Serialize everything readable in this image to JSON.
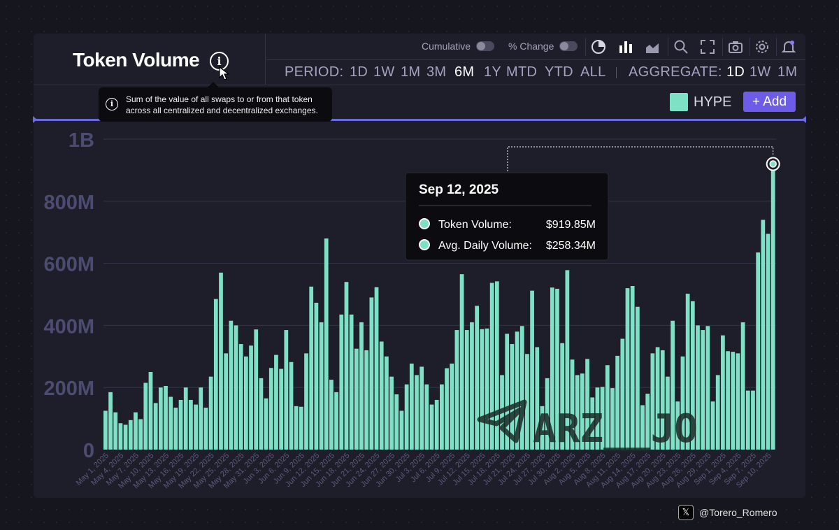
{
  "header": {
    "title": "Token Volume",
    "info_tooltip": "Sum of the value of all swaps to or from that token across all centralized and decentralized exchanges."
  },
  "toolbar": {
    "cumulative_label": "Cumulative",
    "pct_change_label": "% Change",
    "icons": [
      "pie-chart-icon",
      "bar-chart-icon",
      "area-chart-icon",
      "zoom-icon",
      "fullscreen-icon",
      "camera-icon",
      "settings-icon",
      "bell-icon"
    ]
  },
  "period": {
    "label": "PERIOD:",
    "options": [
      "1D",
      "1W",
      "1M",
      "3M",
      "6M",
      "1Y",
      "MTD",
      "YTD",
      "ALL"
    ],
    "selected": "6M"
  },
  "aggregate": {
    "label": "AGGREGATE:",
    "options": [
      "1D",
      "1W",
      "1M"
    ],
    "selected": "1D"
  },
  "legend": {
    "series_name": "HYPE",
    "color": "#7ee0c4"
  },
  "add_button": "+ Add",
  "hover_tooltip": {
    "date": "Sep 12, 2025",
    "rows": [
      {
        "label": "Token Volume:",
        "value": "$919.85M"
      },
      {
        "label": "Avg. Daily Volume:",
        "value": "$258.34M"
      }
    ]
  },
  "watermark": "ARZ__JO",
  "credit": "@Torero_Romero",
  "colors": {
    "bar": "#7ee0c4",
    "accent": "#6c5ce7",
    "background": "#1e1e2b",
    "axis_text": "#4c4c70"
  },
  "chart_data": {
    "type": "bar",
    "title": "Token Volume",
    "xlabel": "",
    "ylabel": "",
    "ylim": [
      0,
      1000000000
    ],
    "y_ticks": [
      "0",
      "200M",
      "400M",
      "600M",
      "800M",
      "1B"
    ],
    "x_tick_labels": [
      "May 1, 2025",
      "May 4, 2025",
      "May 7, 2025",
      "May 10, 2025",
      "May 13, 2025",
      "May 16, 2025",
      "May 19, 2025",
      "May 22, 2025",
      "May 25, 2025",
      "May 28, 2025",
      "May 31, 2025",
      "Jun 3, 2025",
      "Jun 6, 2025",
      "Jun 9, 2025",
      "Jun 12, 2025",
      "Jun 15, 2025",
      "Jun 18, 2025",
      "Jun 21, 2025",
      "Jun 24, 2025",
      "Jun 27, 2025",
      "Jun 30, 2025",
      "Jul 3, 2025",
      "Jul 6, 2025",
      "Jul 9, 2025",
      "Jul 12, 2025",
      "Jul 15, 2025",
      "Jul 18, 2025",
      "Jul 21, 2025",
      "Jul 24, 2025",
      "Jul 27, 2025",
      "Jul 30, 2025",
      "Aug 2, 2025",
      "Aug 5, 2025",
      "Aug 8, 2025",
      "Aug 11, 2025",
      "Aug 14, 2025",
      "Aug 17, 2025",
      "Aug 20, 2025",
      "Aug 23, 2025",
      "Aug 26, 2025",
      "Aug 29, 2025",
      "Sep 1, 2025",
      "Sep 4, 2025",
      "Sep 7, 2025",
      "Sep 10, 2025"
    ],
    "series": [
      {
        "name": "HYPE",
        "start_date": "May 1, 2025",
        "values_millions": [
          125,
          185,
          120,
          85,
          80,
          95,
          120,
          98,
          215,
          250,
          150,
          200,
          205,
          170,
          135,
          160,
          200,
          160,
          145,
          200,
          135,
          235,
          485,
          570,
          310,
          415,
          400,
          340,
          300,
          335,
          387,
          230,
          165,
          263,
          305,
          260,
          385,
          282,
          140,
          138,
          310,
          525,
          473,
          410,
          680,
          225,
          185,
          435,
          540,
          435,
          325,
          410,
          320,
          490,
          523,
          348,
          300,
          235,
          178,
          125,
          210,
          277,
          240,
          267,
          210,
          145,
          160,
          210,
          262,
          277,
          385,
          565,
          385,
          410,
          463,
          388,
          390,
          537,
          542,
          240,
          373,
          340,
          380,
          398,
          308,
          512,
          330,
          140,
          230,
          522,
          518,
          343,
          578,
          290,
          240,
          245,
          292,
          168,
          200,
          202,
          272,
          198,
          302,
          357,
          520,
          527,
          460,
          143,
          180,
          310,
          330,
          320,
          235,
          415,
          155,
          300,
          502,
          478,
          400,
          385,
          398,
          155,
          240,
          368,
          317,
          315,
          310,
          410,
          190,
          190,
          635,
          740,
          695,
          920
        ]
      }
    ],
    "highlighted": {
      "date": "Sep 12, 2025",
      "value": "$919.85M"
    }
  }
}
